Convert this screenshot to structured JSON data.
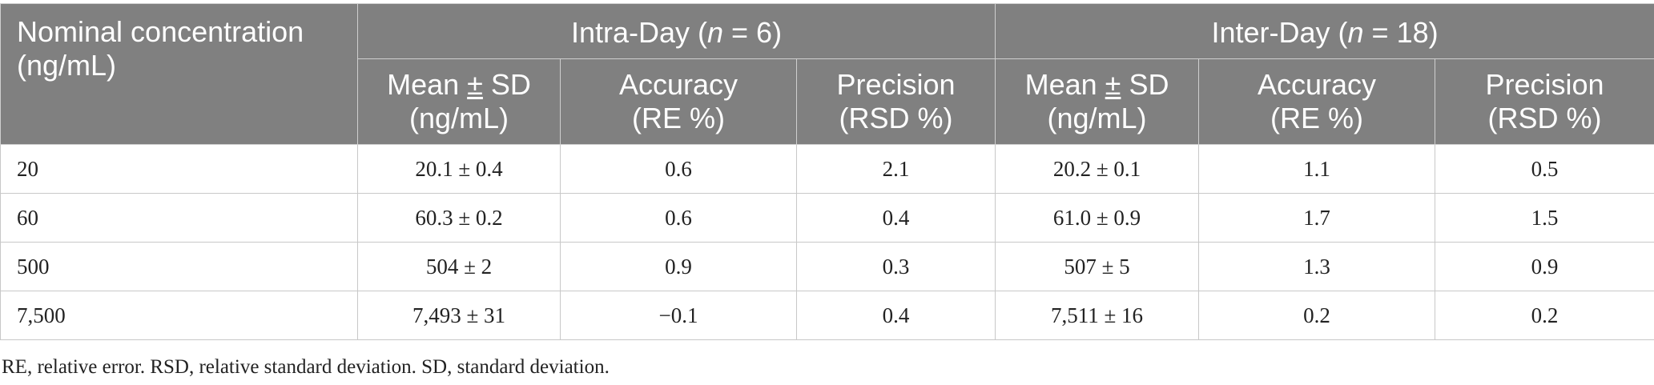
{
  "table": {
    "header": {
      "nominal": [
        "Nominal concentration",
        "(ng/mL)"
      ],
      "intra": {
        "prefix": "Intra-Day (",
        "n": "n",
        "suffix": " = 6)"
      },
      "inter": {
        "prefix": "Inter-Day (",
        "n": "n",
        "suffix": " = 18)"
      },
      "subcolumns": [
        {
          "line1_a": "Mean ",
          "pm": "±",
          "line1_b": " SD",
          "line2": "(ng/mL)"
        },
        {
          "line1_a": "Accuracy",
          "pm": "",
          "line1_b": "",
          "line2": "(RE %)"
        },
        {
          "line1_a": "Precision",
          "pm": "",
          "line1_b": "",
          "line2": "(RSD %)"
        },
        {
          "line1_a": "Mean ",
          "pm": "±",
          "line1_b": " SD",
          "line2": "(ng/mL)"
        },
        {
          "line1_a": "Accuracy",
          "pm": "",
          "line1_b": "",
          "line2": "(RE %)"
        },
        {
          "line1_a": "Precision",
          "pm": "",
          "line1_b": "",
          "line2": "(RSD %)"
        }
      ]
    },
    "rows": [
      [
        "20",
        "20.1 ± 0.4",
        "0.6",
        "2.1",
        "20.2 ± 0.1",
        "1.1",
        "0.5"
      ],
      [
        "60",
        "60.3 ± 0.2",
        "0.6",
        "0.4",
        "61.0 ± 0.9",
        "1.7",
        "1.5"
      ],
      [
        "500",
        "504 ± 2",
        "0.9",
        "0.3",
        "507 ± 5",
        "1.3",
        "0.9"
      ],
      [
        "7,500",
        "7,493 ± 31",
        "−0.1",
        "0.4",
        "7,511 ± 16",
        "0.2",
        "0.2"
      ]
    ]
  },
  "footnote": "RE, relative error. RSD, relative standard deviation. SD, standard deviation.",
  "colors": {
    "header_bg": "#808080",
    "header_text": "#ffffff",
    "border": "#c8c8c8"
  }
}
